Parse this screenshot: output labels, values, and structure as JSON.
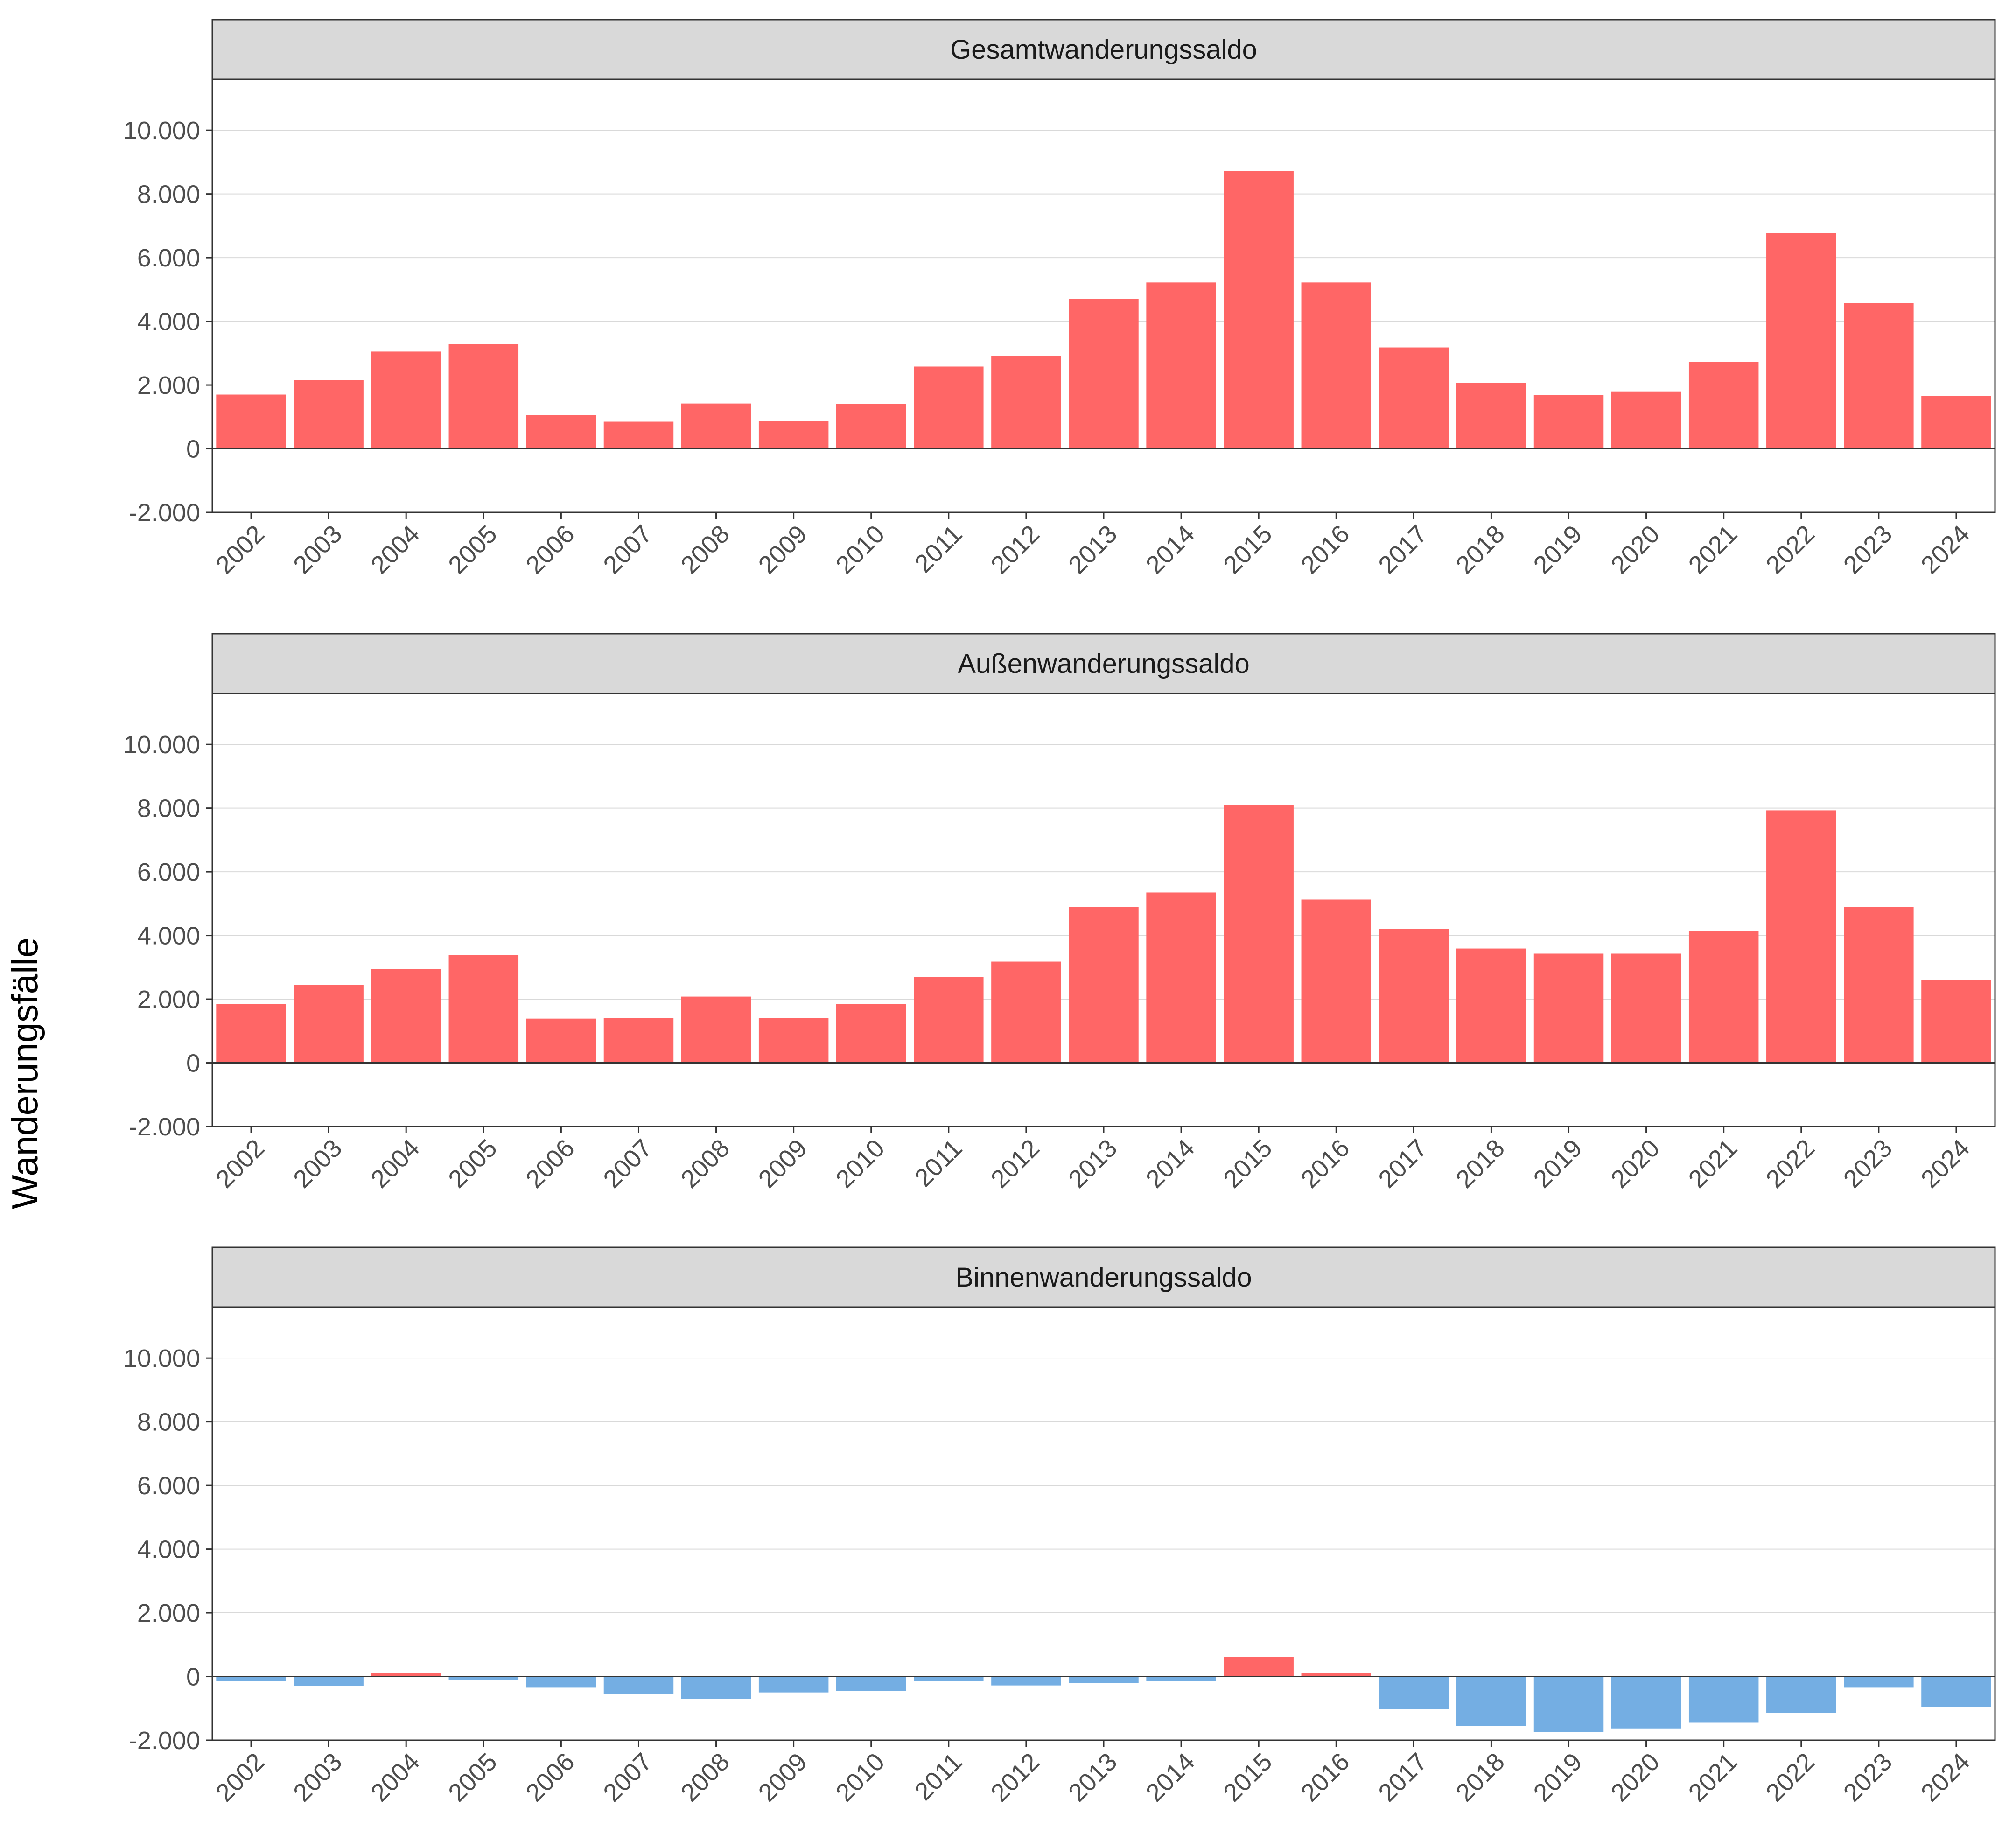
{
  "chart_data": {
    "type": "bar",
    "ylabel": "Wanderungsfälle",
    "ylim": [
      -2000,
      11600
    ],
    "yticks": [
      -2000,
      0,
      2000,
      4000,
      6000,
      8000,
      10000
    ],
    "ytick_labels": [
      "-2.000",
      "0",
      "2.000",
      "4.000",
      "6.000",
      "8.000",
      "10.000"
    ],
    "colors": {
      "positive": "#ff6666",
      "negative": "#74aee3",
      "strip": "#d9d9d9",
      "grid": "#d9d9d9"
    },
    "categories": [
      "2002",
      "2003",
      "2004",
      "2005",
      "2006",
      "2007",
      "2008",
      "2009",
      "2010",
      "2011",
      "2012",
      "2013",
      "2014",
      "2015",
      "2016",
      "2017",
      "2018",
      "2019",
      "2020",
      "2021",
      "2022",
      "2023",
      "2024"
    ],
    "panels": [
      {
        "title": "Gesamtwanderungssaldo",
        "values": [
          1700,
          2150,
          3050,
          3280,
          1050,
          850,
          1420,
          870,
          1400,
          2580,
          2920,
          4700,
          5220,
          8720,
          5220,
          3180,
          2060,
          1680,
          1800,
          2720,
          6770,
          4580,
          1660
        ]
      },
      {
        "title": "Außenwanderungssaldo",
        "values": [
          1840,
          2450,
          2940,
          3380,
          1390,
          1400,
          2080,
          1400,
          1850,
          2700,
          3180,
          4900,
          5350,
          8100,
          5130,
          4200,
          3590,
          3430,
          3430,
          4140,
          7930,
          4900,
          2600
        ]
      },
      {
        "title": "Binnenwanderungssaldo",
        "values": [
          -150,
          -300,
          100,
          -100,
          -350,
          -550,
          -700,
          -500,
          -450,
          -150,
          -280,
          -200,
          -150,
          620,
          100,
          -1030,
          -1550,
          -1750,
          -1630,
          -1450,
          -1150,
          -350,
          -950
        ]
      }
    ]
  }
}
